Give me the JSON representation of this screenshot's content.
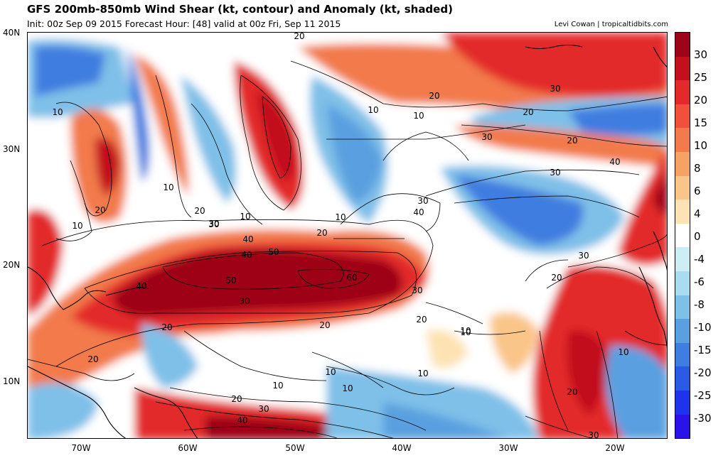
{
  "title": "GFS 200mb-850mb Wind Shear (kt, contour) and Anomaly (kt, shaded)",
  "subtitle": "Init: 00z Sep 09 2015   Forecast Hour: [48]   valid at 00z Fri, Sep 11 2015",
  "credit": "Levi Cowan | tropicaltidbits.com",
  "lat_labels": [
    "40N",
    "30N",
    "20N",
    "10N"
  ],
  "lon_labels": [
    "70W",
    "60W",
    "50W",
    "40W",
    "30W",
    "20W"
  ],
  "colorbar": {
    "labels": [
      "30",
      "25",
      "20",
      "15",
      "10",
      "8",
      "6",
      "4",
      "0",
      "-4",
      "-6",
      "-8",
      "-10",
      "-15",
      "-20",
      "-25",
      "-30"
    ],
    "colors": [
      "#9e0419",
      "#c2101f",
      "#e3292a",
      "#f2503b",
      "#f27a4c",
      "#f6a264",
      "#fac588",
      "#fde3b4",
      "#ffffff",
      "#cdeef5",
      "#a9dcf0",
      "#7fc0e8",
      "#5aa0e0",
      "#3f7de0",
      "#2a5ae6",
      "#1d34ec",
      "#2a12e8"
    ]
  },
  "contour_labels": [
    "10",
    "20",
    "30",
    "40",
    "50",
    "60",
    "50",
    "40",
    "30",
    "20",
    "10",
    "10",
    "20",
    "30",
    "40",
    "30",
    "20",
    "20",
    "10",
    "20",
    "30",
    "10",
    "10",
    "20",
    "10",
    "30",
    "20",
    "40",
    "30",
    "40",
    "30",
    "20",
    "30",
    "10",
    "20",
    "20",
    "10",
    "10",
    "20",
    "10",
    "10",
    "10",
    "20",
    "30",
    "40",
    "30",
    "20",
    "10"
  ]
}
